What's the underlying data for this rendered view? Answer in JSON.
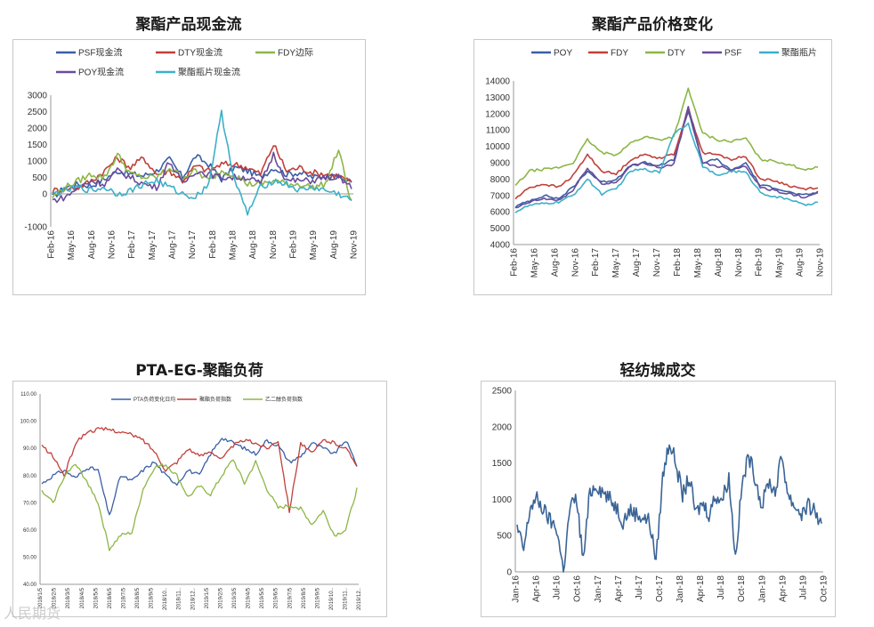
{
  "watermark": "人民期货",
  "chart_data": [
    {
      "type": "line",
      "title": "聚酯产品现金流",
      "ylim": [
        -1000,
        3000
      ],
      "yticks": [
        "-1000",
        "0",
        "500",
        "1000",
        "1500",
        "2000",
        "2500",
        "3000"
      ],
      "ytick_values": [
        -1000,
        0,
        500,
        1000,
        1500,
        2000,
        2500,
        3000
      ],
      "xticks": [
        "Feb-16",
        "May-16",
        "Aug-16",
        "Nov-16",
        "Feb-17",
        "May-17",
        "Aug-17",
        "Nov-17",
        "Feb-18",
        "May-18",
        "Aug-18",
        "Nov-18",
        "Feb-19",
        "May-19",
        "Aug-19",
        "Nov-19"
      ],
      "legend_position": "top",
      "series": [
        {
          "name": "PSF现金流",
          "color": "#3a5fa6",
          "values": [
            -100,
            200,
            300,
            250,
            450,
            700,
            600,
            550,
            700,
            1050,
            500,
            1150,
            900,
            450,
            800,
            700,
            500,
            800,
            600,
            650,
            500,
            550,
            500,
            350
          ]
        },
        {
          "name": "DTY现金流",
          "color": "#c0403a",
          "values": [
            100,
            150,
            200,
            400,
            700,
            1100,
            800,
            1100,
            600,
            700,
            400,
            850,
            700,
            900,
            900,
            800,
            600,
            1500,
            700,
            800,
            650,
            600,
            550,
            350
          ]
        },
        {
          "name": "FDY边际",
          "color": "#8db646",
          "values": [
            -100,
            200,
            400,
            600,
            500,
            1200,
            600,
            500,
            500,
            800,
            500,
            700,
            400,
            700,
            600,
            300,
            300,
            400,
            300,
            300,
            200,
            300,
            1350,
            -300
          ]
        },
        {
          "name": "POY现金流",
          "color": "#6a4b9a",
          "values": [
            -200,
            -100,
            200,
            400,
            300,
            700,
            500,
            300,
            200,
            1000,
            300,
            700,
            600,
            500,
            500,
            500,
            300,
            1200,
            400,
            400,
            400,
            500,
            500,
            200
          ]
        },
        {
          "name": "聚酯瓶片现金流",
          "color": "#3cb0c8",
          "values": [
            0,
            100,
            200,
            100,
            200,
            0,
            100,
            300,
            400,
            200,
            0,
            -100,
            300,
            2450,
            400,
            -600,
            200,
            400,
            300,
            100,
            200,
            100,
            0,
            -200
          ]
        }
      ]
    },
    {
      "type": "line",
      "title": "聚酯产品价格变化",
      "ylim": [
        4000,
        14000
      ],
      "yticks": [
        "4000",
        "5000",
        "6000",
        "7000",
        "8000",
        "9000",
        "10000",
        "11000",
        "12000",
        "13000",
        "14000"
      ],
      "ytick_values": [
        4000,
        5000,
        6000,
        7000,
        8000,
        9000,
        10000,
        11000,
        12000,
        13000,
        14000
      ],
      "xticks": [
        "Feb-16",
        "May-16",
        "Aug-16",
        "Nov-16",
        "Feb-17",
        "May-17",
        "Aug-17",
        "Nov-17",
        "Feb-18",
        "May-18",
        "Aug-18",
        "Nov-18",
        "Feb-19",
        "May-19",
        "Aug-19",
        "Nov-19"
      ],
      "legend_position": "top",
      "series": [
        {
          "name": "POY",
          "color": "#3a5fa6",
          "values": [
            6300,
            6700,
            7000,
            6800,
            7500,
            8500,
            7800,
            8000,
            8800,
            9000,
            8800,
            9200,
            12200,
            9000,
            9200,
            8500,
            9000,
            7600,
            7500,
            7200,
            7000,
            7200
          ]
        },
        {
          "name": "FDY",
          "color": "#c0403a",
          "values": [
            6800,
            7500,
            7700,
            7500,
            8200,
            9500,
            8500,
            8300,
            9200,
            9500,
            9300,
            9500,
            12300,
            9600,
            9500,
            9200,
            9400,
            8000,
            7900,
            7600,
            7400,
            7500
          ]
        },
        {
          "name": "DTY",
          "color": "#8db646",
          "values": [
            7600,
            8500,
            8600,
            8700,
            9000,
            10400,
            9600,
            9500,
            10200,
            10600,
            10400,
            10600,
            13500,
            10800,
            10400,
            10300,
            10500,
            9200,
            9100,
            8900,
            8600,
            8700
          ]
        },
        {
          "name": "PSF",
          "color": "#6a4b9a",
          "values": [
            6200,
            6600,
            6800,
            6700,
            7300,
            8700,
            7700,
            7800,
            8800,
            9000,
            8700,
            8900,
            12400,
            9000,
            8800,
            8600,
            8800,
            7500,
            7300,
            7100,
            6900,
            7100
          ]
        },
        {
          "name": "聚酯瓶片",
          "color": "#3cb0c8",
          "values": [
            6000,
            6400,
            6500,
            6600,
            7000,
            8000,
            7100,
            7400,
            8500,
            8600,
            8400,
            10800,
            11400,
            8800,
            8200,
            8500,
            8400,
            7200,
            6900,
            6800,
            6400,
            6600
          ]
        }
      ]
    },
    {
      "type": "line",
      "title": "PTA-EG-聚酯负荷",
      "ylim": [
        40,
        110
      ],
      "yticks": [
        "40.00",
        "50.00",
        "60.00",
        "70.00",
        "80.00",
        "90.00",
        "100.00",
        "110.00"
      ],
      "ytick_values": [
        40,
        50,
        60,
        70,
        80,
        90,
        100,
        110
      ],
      "xticks": [
        "2018/1/5",
        "2018/2/5",
        "2018/3/5",
        "2018/4/5",
        "2018/5/5",
        "2018/6/5",
        "2018/7/5",
        "2018/8/5",
        "2018/9/5",
        "2018/10..",
        "2018/11..",
        "2018/12..",
        "2019/1/5",
        "2019/2/5",
        "2019/3/5",
        "2019/4/5",
        "2019/5/5",
        "2019/6/5",
        "2019/7/5",
        "2019/8/5",
        "2019/9/5",
        "2019/10..",
        "2019/11..",
        "2019/12.."
      ],
      "legend_position": "top",
      "series": [
        {
          "name": "PTA负荷变化日均",
          "color": "#3a5fa6",
          "values": [
            77,
            80,
            82,
            79,
            83,
            82,
            65,
            80,
            78,
            82,
            85,
            80,
            77,
            82,
            80,
            88,
            94,
            92,
            90,
            88,
            93,
            91,
            85,
            87,
            92,
            90,
            88,
            93,
            84
          ]
        },
        {
          "name": "聚酯负荷指数",
          "color": "#c0403a",
          "values": [
            91,
            87,
            80,
            92,
            96,
            97,
            97,
            96,
            95,
            93,
            89,
            82,
            85,
            90,
            87,
            89,
            86,
            91,
            93,
            92,
            90,
            93,
            67,
            92,
            88,
            93,
            92,
            90,
            84
          ]
        },
        {
          "name": "乙二醇负荷指数",
          "color": "#8db646",
          "values": [
            74,
            70,
            80,
            84,
            78,
            70,
            53,
            58,
            59,
            75,
            83,
            84,
            80,
            72,
            76,
            73,
            80,
            86,
            77,
            85,
            75,
            68,
            69,
            68,
            62,
            67,
            58,
            60,
            75
          ]
        }
      ]
    },
    {
      "type": "line",
      "title": "轻纺城成交",
      "ylim": [
        0,
        2500
      ],
      "yticks": [
        "0",
        "500",
        "1000",
        "1500",
        "2000",
        "2500"
      ],
      "ytick_values": [
        0,
        500,
        1000,
        1500,
        2000,
        2500
      ],
      "xticks": [
        "Jan-16",
        "Apr-16",
        "Jul-16",
        "Oct-16",
        "Jan-17",
        "Apr-17",
        "Jul-17",
        "Oct-17",
        "Jan-18",
        "Apr-18",
        "Jul-18",
        "Oct-18",
        "Jan-19",
        "Apr-19",
        "Jul-19",
        "Oct-19"
      ],
      "series": [
        {
          "name": "",
          "color": "#3a6496",
          "values": [
            600,
            300,
            900,
            1000,
            850,
            700,
            600,
            0,
            900,
            1000,
            150,
            1100,
            1200,
            1100,
            1000,
            900,
            700,
            850,
            800,
            750,
            700,
            150,
            1300,
            1800,
            1500,
            1050,
            1300,
            800,
            950,
            800,
            1050,
            1000,
            1300,
            200,
            1200,
            1600,
            1300,
            900,
            1250,
            1100,
            1600,
            1050,
            900,
            800,
            900,
            850,
            600
          ]
        }
      ]
    }
  ]
}
